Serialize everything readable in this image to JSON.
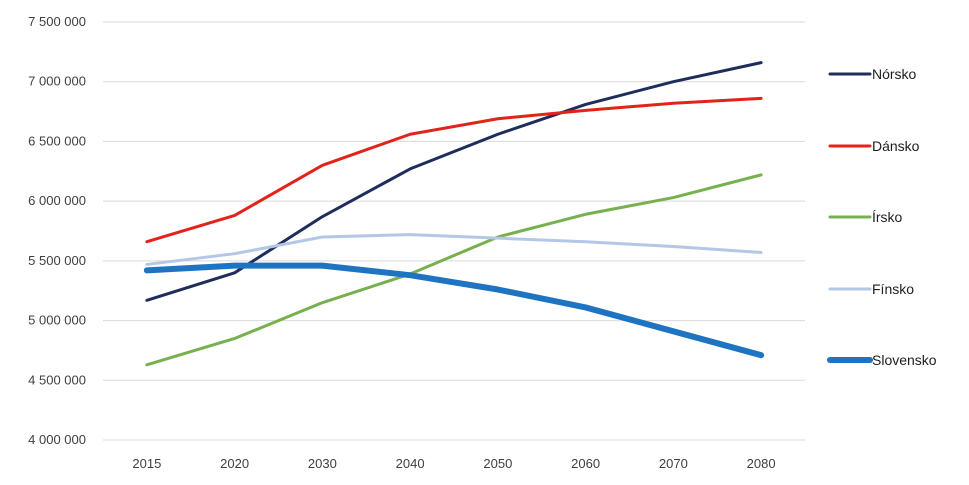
{
  "chart_data": {
    "type": "line",
    "title": "",
    "xlabel": "",
    "ylabel": "",
    "categories": [
      "2015",
      "2020",
      "2030",
      "2040",
      "2050",
      "2060",
      "2070",
      "2080"
    ],
    "ylim": [
      4000000,
      7500000
    ],
    "yticks": [
      4000000,
      4500000,
      5000000,
      5500000,
      6000000,
      6500000,
      7000000,
      7500000
    ],
    "ytick_labels": [
      "4 000 000",
      "4 500 000",
      "5 000 000",
      "5 500 000",
      "6 000 000",
      "6 500 000",
      "7 000 000",
      "7 500 000"
    ],
    "grid": true,
    "legend_position": "right",
    "series": [
      {
        "name": "Nórsko",
        "color": "#1f2d5c",
        "values": [
          5170000,
          5400000,
          5870000,
          6270000,
          6560000,
          6810000,
          7000000,
          7160000
        ]
      },
      {
        "name": "Dánsko",
        "color": "#e2231a",
        "values": [
          5660000,
          5880000,
          6300000,
          6560000,
          6690000,
          6760000,
          6820000,
          6860000
        ]
      },
      {
        "name": "Írsko",
        "color": "#77b04f",
        "values": [
          4630000,
          4850000,
          5150000,
          5390000,
          5700000,
          5890000,
          6030000,
          6220000
        ]
      },
      {
        "name": "Fínsko",
        "color": "#b4c7e7",
        "values": [
          5470000,
          5560000,
          5700000,
          5720000,
          5690000,
          5660000,
          5620000,
          5570000
        ]
      },
      {
        "name": "Slovensko",
        "color": "#1f74c2",
        "values": [
          5420000,
          5460000,
          5460000,
          5380000,
          5260000,
          5110000,
          4910000,
          4710000
        ]
      }
    ]
  }
}
